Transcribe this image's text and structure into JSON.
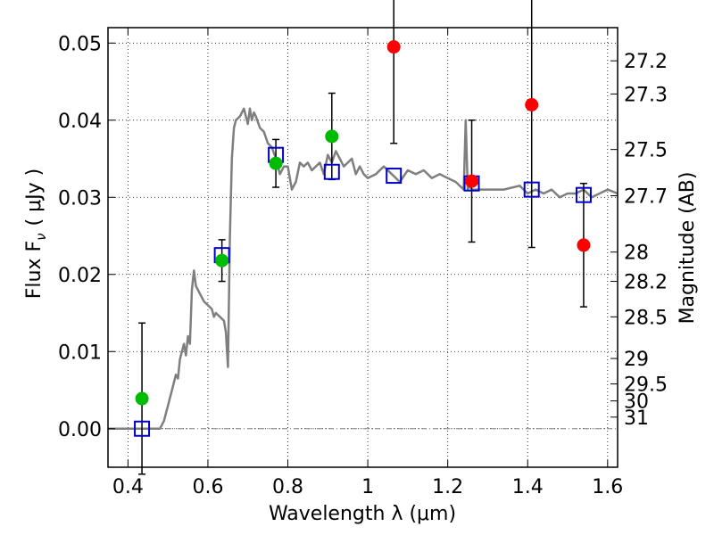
{
  "chart_data": {
    "type": "scatter",
    "xlabel": "Wavelength  λ (μm)",
    "ylabel": "Flux  F",
    "ylabel_sub": "ν",
    "ylabel_unit": "( μJy )",
    "ylabel_right": "Magnitude (AB)",
    "xlim": [
      0.35,
      1.625
    ],
    "ylim": [
      -0.005,
      0.052
    ],
    "grid": true,
    "grid_style": "dotted",
    "x_ticks": [
      {
        "value": 0.4,
        "label": "0.4"
      },
      {
        "value": 0.6,
        "label": "0.6"
      },
      {
        "value": 0.8,
        "label": "0.8"
      },
      {
        "value": 1.0,
        "label": "1"
      },
      {
        "value": 1.2,
        "label": "1.2"
      },
      {
        "value": 1.4,
        "label": "1.4"
      },
      {
        "value": 1.6,
        "label": "1.6"
      }
    ],
    "y_ticks": [
      {
        "value": 0.0,
        "label": "0.00"
      },
      {
        "value": 0.01,
        "label": "0.01"
      },
      {
        "value": 0.02,
        "label": "0.02"
      },
      {
        "value": 0.03,
        "label": "0.03"
      },
      {
        "value": 0.04,
        "label": "0.04"
      },
      {
        "value": 0.05,
        "label": "0.05"
      }
    ],
    "right_ticks": [
      {
        "flux": 0.0477,
        "label": "27.2"
      },
      {
        "flux": 0.0434,
        "label": "27.3"
      },
      {
        "flux": 0.0362,
        "label": "27.5"
      },
      {
        "flux": 0.0302,
        "label": "27.7"
      },
      {
        "flux": 0.0229,
        "label": "28"
      },
      {
        "flux": 0.0191,
        "label": "28.2"
      },
      {
        "flux": 0.0145,
        "label": "28.5"
      },
      {
        "flux": 0.0091,
        "label": "29"
      },
      {
        "flux": 0.0058,
        "label": "29.5"
      },
      {
        "flux": 0.0036,
        "label": "30"
      },
      {
        "flux": 0.0015,
        "label": "31"
      }
    ],
    "zero_line": {
      "y": 0.0,
      "style": "dashdot",
      "color": "#808080"
    },
    "series": [
      {
        "kind": "line",
        "color": "#7f7f7f",
        "x": [
          0.35,
          0.4,
          0.45,
          0.48,
          0.49,
          0.5,
          0.51,
          0.52,
          0.525,
          0.53,
          0.54,
          0.545,
          0.55,
          0.555,
          0.56,
          0.565,
          0.57,
          0.58,
          0.59,
          0.6,
          0.61,
          0.615,
          0.62,
          0.63,
          0.64,
          0.645,
          0.65,
          0.655,
          0.66,
          0.665,
          0.67,
          0.68,
          0.69,
          0.7,
          0.705,
          0.71,
          0.715,
          0.72,
          0.73,
          0.74,
          0.75,
          0.76,
          0.77,
          0.78,
          0.79,
          0.8,
          0.81,
          0.82,
          0.83,
          0.84,
          0.85,
          0.86,
          0.87,
          0.88,
          0.89,
          0.9,
          0.91,
          0.92,
          0.93,
          0.94,
          0.95,
          0.96,
          0.97,
          0.98,
          0.99,
          1.0,
          1.02,
          1.04,
          1.06,
          1.08,
          1.1,
          1.12,
          1.14,
          1.16,
          1.18,
          1.2,
          1.22,
          1.24,
          1.245,
          1.25,
          1.255,
          1.26,
          1.3,
          1.34,
          1.38,
          1.4,
          1.42,
          1.44,
          1.46,
          1.48,
          1.5,
          1.52,
          1.54,
          1.56,
          1.58,
          1.6,
          1.625
        ],
        "y": [
          0.0,
          0.0,
          0.0,
          0.0,
          0.001,
          0.003,
          0.005,
          0.007,
          0.0065,
          0.009,
          0.011,
          0.0095,
          0.012,
          0.011,
          0.018,
          0.0205,
          0.0185,
          0.0175,
          0.0165,
          0.016,
          0.0155,
          0.0145,
          0.015,
          0.0145,
          0.014,
          0.0125,
          0.008,
          0.025,
          0.035,
          0.039,
          0.04,
          0.0405,
          0.0415,
          0.0395,
          0.0415,
          0.04,
          0.041,
          0.0405,
          0.039,
          0.0385,
          0.037,
          0.0365,
          0.035,
          0.033,
          0.034,
          0.034,
          0.031,
          0.032,
          0.0345,
          0.034,
          0.0345,
          0.0335,
          0.034,
          0.0345,
          0.033,
          0.0355,
          0.0345,
          0.036,
          0.035,
          0.034,
          0.0345,
          0.035,
          0.033,
          0.034,
          0.033,
          0.0325,
          0.033,
          0.034,
          0.033,
          0.032,
          0.0335,
          0.033,
          0.0335,
          0.0325,
          0.033,
          0.0325,
          0.032,
          0.031,
          0.04,
          0.031,
          0.0315,
          0.031,
          0.031,
          0.031,
          0.0315,
          0.0305,
          0.031,
          0.0305,
          0.031,
          0.03,
          0.0305,
          0.0305,
          0.031,
          0.03,
          0.0305,
          0.031,
          0.0305
        ]
      },
      {
        "kind": "squares",
        "color": "#0000cc",
        "x": [
          0.435,
          0.635,
          0.77,
          0.91,
          1.065,
          1.26,
          1.41,
          1.54
        ],
        "y": [
          0.0,
          0.0225,
          0.0355,
          0.0333,
          0.0328,
          0.0318,
          0.031,
          0.0303
        ]
      },
      {
        "kind": "points",
        "color": "#00bb00",
        "x": [
          0.435,
          0.635,
          0.77,
          0.91
        ],
        "y": [
          0.0039,
          0.0218,
          0.0344,
          0.0379
        ],
        "err": [
          0.0098,
          0.0027,
          0.0031,
          0.0056
        ]
      },
      {
        "kind": "points",
        "color": "#ff0000",
        "x": [
          1.065,
          1.26,
          1.41,
          1.54
        ],
        "y": [
          0.0495,
          0.0321,
          0.042,
          0.0238
        ],
        "err": [
          0.0125,
          0.0079,
          0.0185,
          0.008
        ]
      }
    ]
  }
}
